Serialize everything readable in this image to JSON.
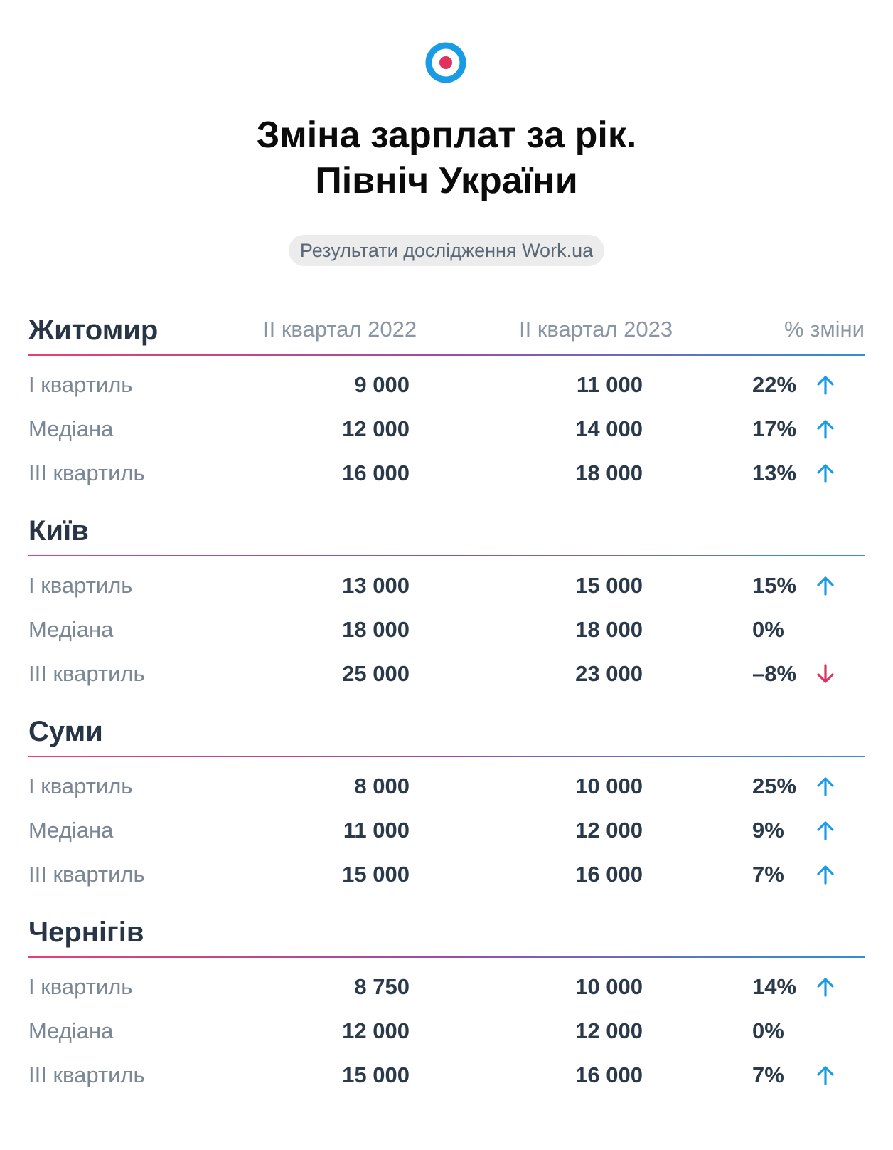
{
  "header": {
    "title_line1": "Зміна зарплат за рік.",
    "title_line2": "Північ України",
    "badge": "Результати дослідження Work.ua"
  },
  "columns": {
    "q2_2022": "II квартал 2022",
    "q2_2023": "II квартал 2023",
    "change": "% зміни"
  },
  "colors": {
    "up": "#1a9be6",
    "down": "#e0315f",
    "logo_ring": "#1a9be6",
    "logo_dot": "#e0315f"
  },
  "cities": [
    {
      "name": "Житомир",
      "rows": [
        {
          "label": "I квартиль",
          "v2022": "9 000",
          "v2023": "11 000",
          "change": "22%",
          "dir": "up"
        },
        {
          "label": "Медіана",
          "v2022": "12 000",
          "v2023": "14 000",
          "change": "17%",
          "dir": "up"
        },
        {
          "label": "III квартиль",
          "v2022": "16 000",
          "v2023": "18 000",
          "change": "13%",
          "dir": "up"
        }
      ]
    },
    {
      "name": "Київ",
      "rows": [
        {
          "label": "I квартиль",
          "v2022": "13 000",
          "v2023": "15 000",
          "change": "15%",
          "dir": "up"
        },
        {
          "label": "Медіана",
          "v2022": "18 000",
          "v2023": "18 000",
          "change": "0%",
          "dir": "none"
        },
        {
          "label": "III квартиль",
          "v2022": "25 000",
          "v2023": "23 000",
          "change": "–8%",
          "dir": "down"
        }
      ]
    },
    {
      "name": "Суми",
      "rows": [
        {
          "label": "I квартиль",
          "v2022": "8 000",
          "v2023": "10 000",
          "change": "25%",
          "dir": "up"
        },
        {
          "label": "Медіана",
          "v2022": "11 000",
          "v2023": "12 000",
          "change": "9%",
          "dir": "up"
        },
        {
          "label": "III квартиль",
          "v2022": "15 000",
          "v2023": "16 000",
          "change": "7%",
          "dir": "up"
        }
      ]
    },
    {
      "name": "Чернігів",
      "rows": [
        {
          "label": "I квартиль",
          "v2022": "8 750",
          "v2023": "10 000",
          "change": "14%",
          "dir": "up"
        },
        {
          "label": "Медіана",
          "v2022": "12 000",
          "v2023": "12 000",
          "change": "0%",
          "dir": "none"
        },
        {
          "label": "III квартиль",
          "v2022": "15 000",
          "v2023": "16 000",
          "change": "7%",
          "dir": "up"
        }
      ]
    }
  ]
}
